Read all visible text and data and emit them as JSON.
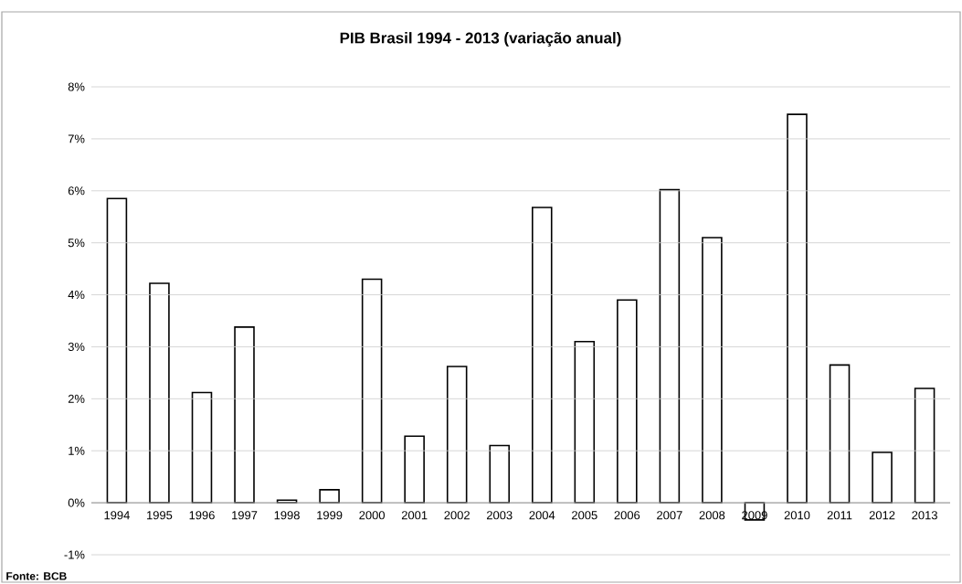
{
  "chart_data": {
    "type": "bar",
    "title": "PIB Brasil 1994 - 2013 (variação anual)",
    "categories": [
      "1994",
      "1995",
      "1996",
      "1997",
      "1998",
      "1999",
      "2000",
      "2001",
      "2002",
      "2003",
      "2004",
      "2005",
      "2006",
      "2007",
      "2008",
      "2009",
      "2010",
      "2011",
      "2012",
      "2013"
    ],
    "values": [
      5.85,
      4.22,
      2.12,
      3.38,
      0.05,
      0.25,
      4.3,
      1.28,
      2.62,
      1.1,
      5.68,
      3.1,
      3.9,
      6.02,
      5.1,
      -0.33,
      7.47,
      2.65,
      0.97,
      2.2
    ],
    "color": "#ffffff",
    "ylim": [
      -1,
      8
    ],
    "yticks": [
      {
        "value": -1,
        "label": "-1%"
      },
      {
        "value": 0,
        "label": "0%"
      },
      {
        "value": 1,
        "label": "1%"
      },
      {
        "value": 2,
        "label": "2%"
      },
      {
        "value": 3,
        "label": "3%"
      },
      {
        "value": 4,
        "label": "4%"
      },
      {
        "value": 5,
        "label": "5%"
      },
      {
        "value": 6,
        "label": "6%"
      },
      {
        "value": 7,
        "label": "7%"
      },
      {
        "value": 8,
        "label": "8%"
      }
    ],
    "grid": "y",
    "annotations": [
      "Fonte: BCB"
    ]
  }
}
